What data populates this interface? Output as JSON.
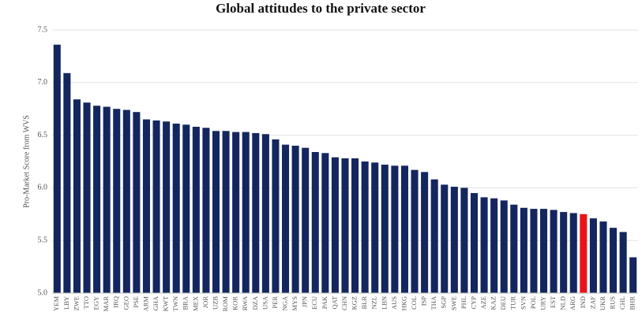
{
  "chart_data": {
    "type": "bar",
    "title": "Global attitudes to the private sector",
    "y_label": "Pro-Market Score from WVS",
    "categories": [
      "YEM",
      "LBY",
      "ZWE",
      "TTO",
      "EGY",
      "MAR",
      "IRQ",
      "GEO",
      "PSE",
      "ARM",
      "GHA",
      "KWT",
      "TWN",
      "BRA",
      "MEX",
      "JOR",
      "UZB",
      "ROM",
      "KOR",
      "RWA",
      "DZA",
      "USA",
      "PER",
      "NGA",
      "MYS",
      "JPN",
      "ECU",
      "PAK",
      "QAT",
      "CHN",
      "KGZ",
      "BLR",
      "NZL",
      "LBN",
      "AUS",
      "HKG",
      "COL",
      "ISP",
      "THA",
      "SGP",
      "SWE",
      "PHL",
      "CYP",
      "AZE",
      "KAZ",
      "DEU",
      "TUR",
      "SVN",
      "POL",
      "URY",
      "EST",
      "NLD",
      "ARG",
      "IND",
      "ZAF",
      "UKR",
      "RUS",
      "CHL",
      "BHR"
    ],
    "values": [
      7.36,
      7.09,
      6.84,
      6.81,
      6.78,
      6.77,
      6.75,
      6.74,
      6.72,
      6.65,
      6.64,
      6.63,
      6.61,
      6.6,
      6.58,
      6.57,
      6.54,
      6.54,
      6.53,
      6.53,
      6.52,
      6.51,
      6.46,
      6.41,
      6.4,
      6.38,
      6.34,
      6.33,
      6.29,
      6.28,
      6.28,
      6.25,
      6.24,
      6.22,
      6.21,
      6.21,
      6.17,
      6.15,
      6.08,
      6.03,
      6.01,
      6.0,
      5.95,
      5.91,
      5.9,
      5.88,
      5.84,
      5.81,
      5.8,
      5.8,
      5.79,
      5.77,
      5.76,
      5.75,
      5.71,
      5.68,
      5.62,
      5.58,
      5.34
    ],
    "colors": [
      "#13265e",
      "#13265e",
      "#13265e",
      "#13265e",
      "#13265e",
      "#13265e",
      "#13265e",
      "#13265e",
      "#13265e",
      "#13265e",
      "#13265e",
      "#13265e",
      "#13265e",
      "#13265e",
      "#13265e",
      "#13265e",
      "#13265e",
      "#13265e",
      "#13265e",
      "#13265e",
      "#13265e",
      "#13265e",
      "#13265e",
      "#13265e",
      "#13265e",
      "#13265e",
      "#13265e",
      "#13265e",
      "#13265e",
      "#13265e",
      "#13265e",
      "#13265e",
      "#13265e",
      "#13265e",
      "#13265e",
      "#13265e",
      "#13265e",
      "#13265e",
      "#13265e",
      "#13265e",
      "#13265e",
      "#13265e",
      "#13265e",
      "#13265e",
      "#13265e",
      "#13265e",
      "#13265e",
      "#13265e",
      "#13265e",
      "#13265e",
      "#13265e",
      "#13265e",
      "#13265e",
      "#e8141a",
      "#13265e",
      "#13265e",
      "#13265e",
      "#13265e",
      "#13265e"
    ],
    "ylim": [
      5.0,
      7.5
    ],
    "yticks": [
      {
        "value": 5.0,
        "label": "5.0"
      },
      {
        "value": 5.5,
        "label": "5.5"
      },
      {
        "value": 6.0,
        "label": "6.0"
      },
      {
        "value": 6.5,
        "label": "6.5"
      },
      {
        "value": 7.0,
        "label": "7.0"
      },
      {
        "value": 7.5,
        "label": "7.5"
      }
    ],
    "grid": true
  }
}
